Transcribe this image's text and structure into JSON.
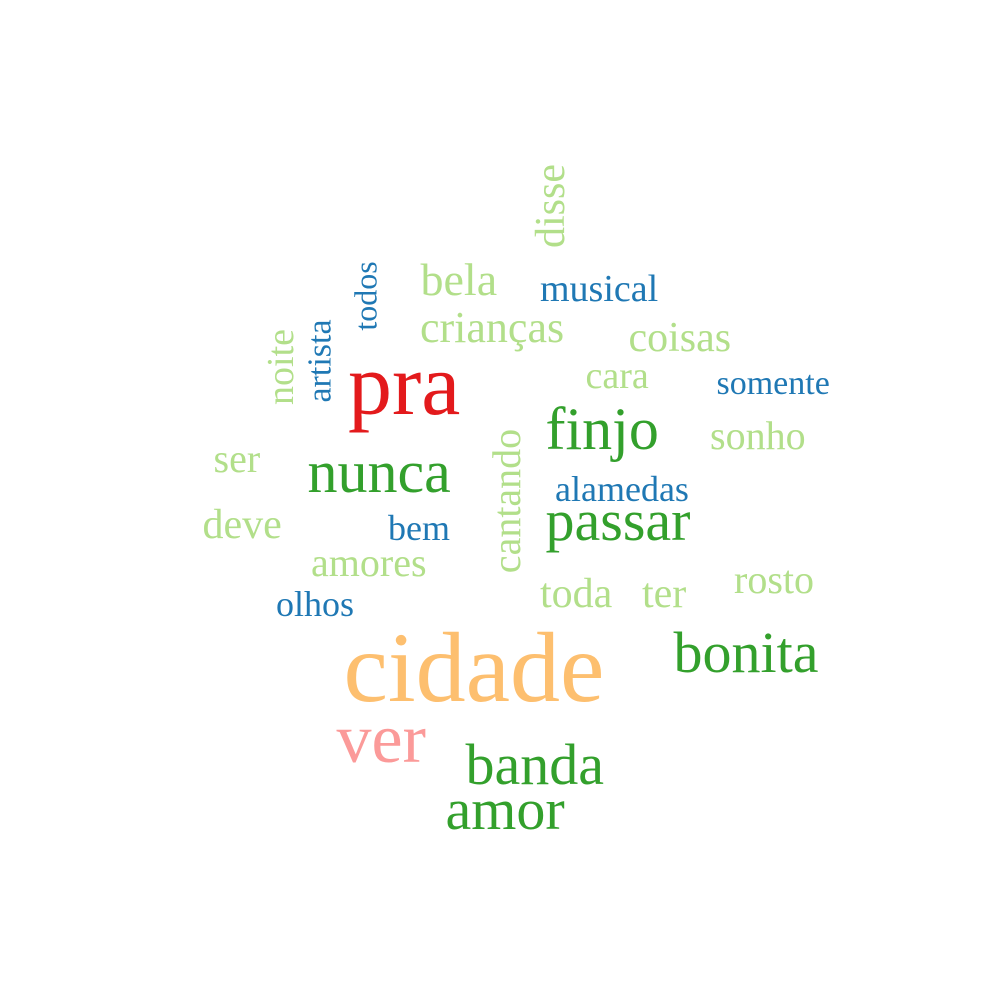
{
  "palette": {
    "dark_red": "#e31a1c",
    "orange": "#fdbf6f",
    "pink": "#fb9a99",
    "dark_green": "#33a02c",
    "light_green": "#b2df8a",
    "blue": "#1f78b4"
  },
  "words": [
    {
      "text": "cidade",
      "weight": 10,
      "color": "#fdbf6f"
    },
    {
      "text": "pra",
      "weight": 9,
      "color": "#e31a1c"
    },
    {
      "text": "ver",
      "weight": 8,
      "color": "#fb9a99"
    },
    {
      "text": "bonita",
      "weight": 7,
      "color": "#33a02c"
    },
    {
      "text": "nunca",
      "weight": 7,
      "color": "#33a02c"
    },
    {
      "text": "finjo",
      "weight": 7,
      "color": "#33a02c"
    },
    {
      "text": "passar",
      "weight": 7,
      "color": "#33a02c"
    },
    {
      "text": "banda",
      "weight": 7,
      "color": "#33a02c"
    },
    {
      "text": "amor",
      "weight": 7,
      "color": "#33a02c"
    },
    {
      "text": "disse",
      "weight": 5,
      "color": "#b2df8a"
    },
    {
      "text": "bela",
      "weight": 5,
      "color": "#b2df8a"
    },
    {
      "text": "crianças",
      "weight": 5,
      "color": "#b2df8a"
    },
    {
      "text": "coisas",
      "weight": 5,
      "color": "#b2df8a"
    },
    {
      "text": "noite",
      "weight": 5,
      "color": "#b2df8a"
    },
    {
      "text": "cara",
      "weight": 5,
      "color": "#b2df8a"
    },
    {
      "text": "sonho",
      "weight": 5,
      "color": "#b2df8a"
    },
    {
      "text": "ser",
      "weight": 5,
      "color": "#b2df8a"
    },
    {
      "text": "deve",
      "weight": 5,
      "color": "#b2df8a"
    },
    {
      "text": "cantando",
      "weight": 5,
      "color": "#b2df8a"
    },
    {
      "text": "amores",
      "weight": 5,
      "color": "#b2df8a"
    },
    {
      "text": "toda",
      "weight": 5,
      "color": "#b2df8a"
    },
    {
      "text": "ter",
      "weight": 5,
      "color": "#b2df8a"
    },
    {
      "text": "rosto",
      "weight": 5,
      "color": "#b2df8a"
    },
    {
      "text": "musical",
      "weight": 4,
      "color": "#1f78b4"
    },
    {
      "text": "todos",
      "weight": 4,
      "color": "#1f78b4"
    },
    {
      "text": "artista",
      "weight": 4,
      "color": "#1f78b4"
    },
    {
      "text": "somente",
      "weight": 4,
      "color": "#1f78b4"
    },
    {
      "text": "alamedas",
      "weight": 4,
      "color": "#1f78b4"
    },
    {
      "text": "bem",
      "weight": 4,
      "color": "#1f78b4"
    },
    {
      "text": "olhos",
      "weight": 4,
      "color": "#1f78b4"
    }
  ]
}
